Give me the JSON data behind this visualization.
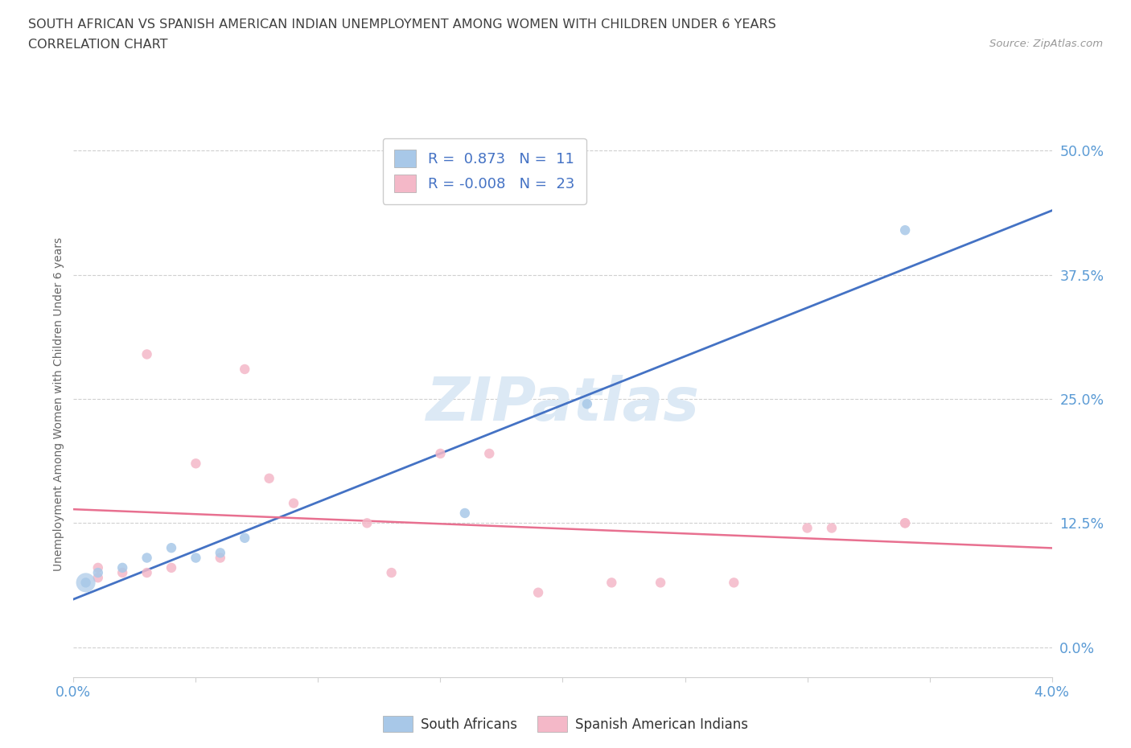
{
  "title_line1": "SOUTH AFRICAN VS SPANISH AMERICAN INDIAN UNEMPLOYMENT AMONG WOMEN WITH CHILDREN UNDER 6 YEARS",
  "title_line2": "CORRELATION CHART",
  "source": "Source: ZipAtlas.com",
  "ylabel": "Unemployment Among Women with Children Under 6 years",
  "xlim": [
    0.0,
    0.04
  ],
  "ylim": [
    -0.03,
    0.52
  ],
  "yticks": [
    0.0,
    0.125,
    0.25,
    0.375,
    0.5
  ],
  "ytick_labels": [
    "0.0%",
    "12.5%",
    "25.0%",
    "37.5%",
    "50.0%"
  ],
  "xticks": [
    0.0,
    0.005,
    0.01,
    0.015,
    0.02,
    0.025,
    0.03,
    0.035,
    0.04
  ],
  "xtick_left_label": "0.0%",
  "xtick_right_label": "4.0%",
  "south_african_x": [
    0.0005,
    0.001,
    0.002,
    0.003,
    0.004,
    0.005,
    0.006,
    0.007,
    0.016,
    0.021,
    0.034
  ],
  "south_african_y": [
    0.065,
    0.075,
    0.08,
    0.09,
    0.1,
    0.09,
    0.095,
    0.11,
    0.135,
    0.245,
    0.42
  ],
  "south_african_sizes": [
    200,
    80,
    80,
    80,
    80,
    80,
    80,
    80,
    80,
    80,
    80
  ],
  "spanish_x": [
    0.001,
    0.001,
    0.002,
    0.003,
    0.003,
    0.004,
    0.005,
    0.006,
    0.007,
    0.008,
    0.009,
    0.012,
    0.013,
    0.015,
    0.017,
    0.019,
    0.022,
    0.024,
    0.027,
    0.03,
    0.031,
    0.034,
    0.034
  ],
  "spanish_y": [
    0.07,
    0.08,
    0.075,
    0.295,
    0.075,
    0.08,
    0.185,
    0.09,
    0.28,
    0.17,
    0.145,
    0.125,
    0.075,
    0.195,
    0.195,
    0.055,
    0.065,
    0.065,
    0.065,
    0.12,
    0.12,
    0.125,
    0.125
  ],
  "spanish_sizes": [
    80,
    80,
    80,
    80,
    80,
    80,
    80,
    80,
    80,
    80,
    80,
    80,
    80,
    80,
    80,
    80,
    80,
    80,
    80,
    80,
    80,
    80,
    80
  ],
  "sa_R": 0.873,
  "sa_N": 11,
  "sp_R": -0.008,
  "sp_N": 23,
  "sa_color": "#a8c8e8",
  "sp_color": "#f4b8c8",
  "sa_line_color": "#4472c4",
  "sp_line_color": "#e87090",
  "background_color": "#ffffff",
  "grid_color": "#d0d0d0",
  "title_color": "#404040",
  "tick_color": "#5b9bd5",
  "watermark_text": "ZIPatlas",
  "watermark_color": "#dce9f5"
}
